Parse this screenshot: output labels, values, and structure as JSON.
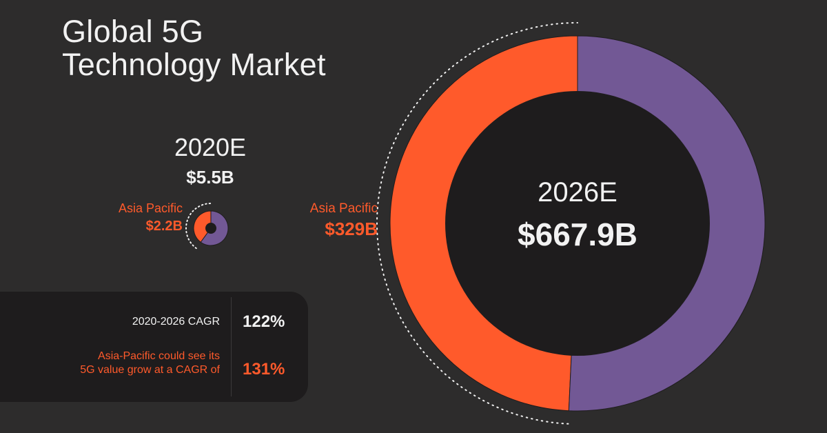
{
  "title": {
    "line1": "Global 5G",
    "line2": "Technology Market"
  },
  "colors": {
    "background": "#2d2c2c",
    "asia_pacific": "#ff5a2b",
    "rest_of_world": "#725895",
    "hole": "#1e1c1d",
    "text": "#f2f2f2"
  },
  "chart_data": [
    {
      "type": "pie",
      "variant": "donut",
      "year_label": "2020E",
      "total_label": "$5.5B",
      "total": 5.5,
      "slices": [
        {
          "name": "Asia Pacific",
          "value": 2.2,
          "label": "$2.2B",
          "color": "#ff5a2b"
        },
        {
          "name": "",
          "value": 3.3,
          "color": "#725895"
        }
      ]
    },
    {
      "type": "pie",
      "variant": "donut",
      "year_label": "2026E",
      "total_label": "$667.9B",
      "total": 667.9,
      "slices": [
        {
          "name": "Asia Pacific",
          "value": 329,
          "label": "$329B",
          "color": "#ff5a2b"
        },
        {
          "name": "",
          "value": 338.9,
          "color": "#725895"
        }
      ]
    }
  ],
  "cagr": {
    "row1_label": "2020-2026 CAGR",
    "row1_value": "122%",
    "row2_label_line1": "Asia-Pacific could see its",
    "row2_label_line2": "5G value grow at a CAGR of",
    "row2_value": "131%"
  }
}
